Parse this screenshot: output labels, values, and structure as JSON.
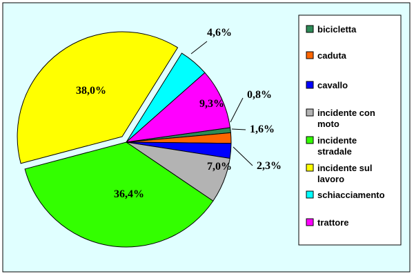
{
  "chart_data": {
    "type": "pie",
    "title": "",
    "series": [
      {
        "name": "bicicletta",
        "value": 0.8,
        "label": "0,8%",
        "color": "#2E8B57"
      },
      {
        "name": "caduta",
        "value": 1.6,
        "label": "1,6%",
        "color": "#FF6600"
      },
      {
        "name": "cavallo",
        "value": 2.3,
        "label": "2,3%",
        "color": "#0000FF"
      },
      {
        "name": "incidente con moto",
        "value": 7.0,
        "label": "7,0%",
        "color": "#B3B3B3"
      },
      {
        "name": "incidente stradale",
        "value": 36.4,
        "label": "36,4%",
        "color": "#33FF00"
      },
      {
        "name": "incidente sul lavoro",
        "value": 38.0,
        "label": "38,0%",
        "color": "#FFFF00"
      },
      {
        "name": "schiacciamento",
        "value": 4.6,
        "label": "4,6%",
        "color": "#00FFFF"
      },
      {
        "name": "trattore",
        "value": 9.3,
        "label": "9,3%",
        "color": "#FF00FF"
      }
    ],
    "legend_placement": "right",
    "legend_lines": [
      [
        "bicicletta"
      ],
      [
        "caduta"
      ],
      [
        "cavallo"
      ],
      [
        "incidente con",
        "moto"
      ],
      [
        "incidente",
        "stradale"
      ],
      [
        "incidente sul",
        "lavoro"
      ],
      [
        "schiacciamento"
      ],
      [
        "trattore"
      ]
    ],
    "colors": {
      "background": "#E0FFFF",
      "legend_background": "#FFFFFF",
      "border": "#000000"
    }
  }
}
